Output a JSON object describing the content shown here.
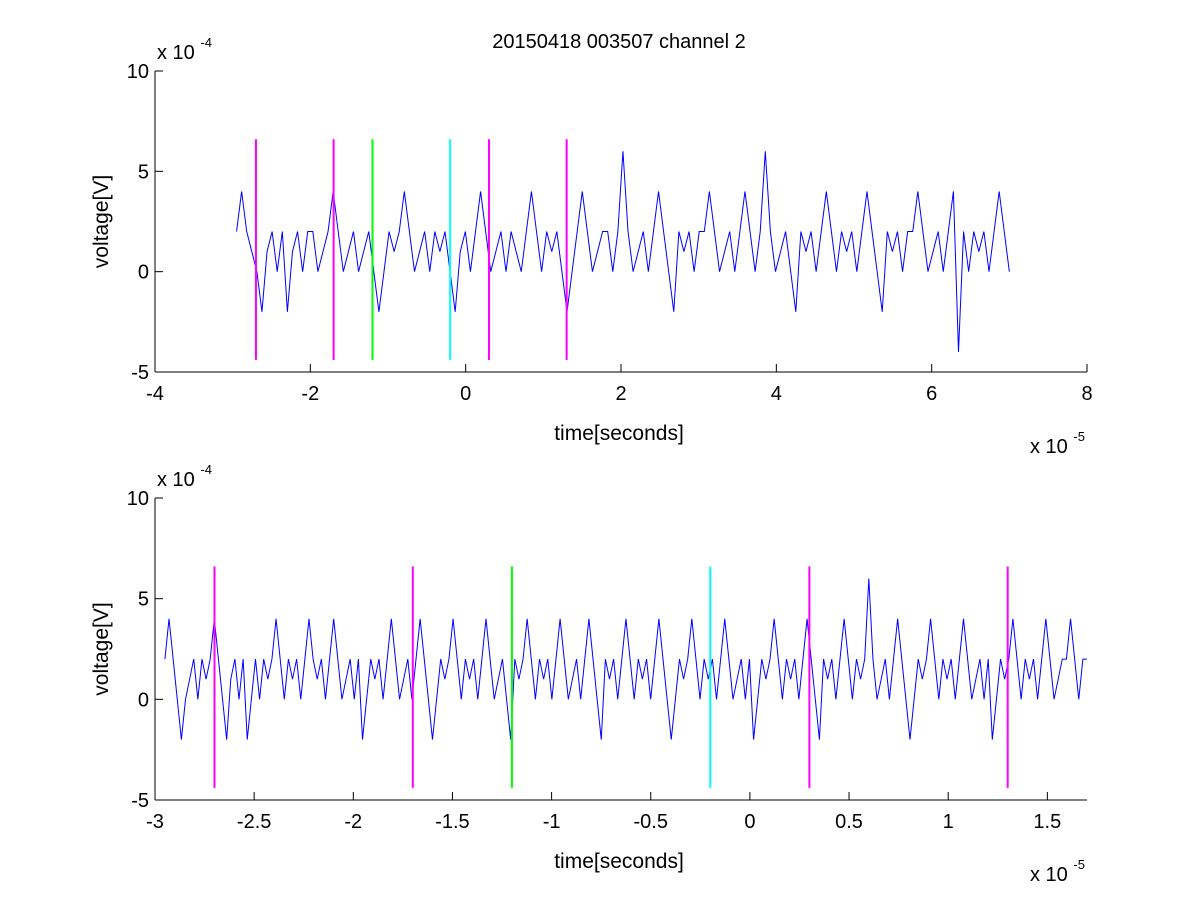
{
  "figure_title": "20150418 003507 channel 2",
  "chart_data": [
    {
      "type": "line",
      "title": "20150418 003507 channel 2",
      "xlabel": "time[seconds]",
      "ylabel": "voltage[V]",
      "x_exponent_label": "x 10",
      "x_exponent": "-5",
      "y_exponent_label": "x 10",
      "y_exponent": "-4",
      "xlim": [
        -4,
        8
      ],
      "ylim": [
        -5,
        10
      ],
      "xticks": [
        -4,
        -2,
        0,
        2,
        4,
        6,
        8
      ],
      "xtick_labels": [
        "-4",
        "-2",
        "0",
        "2",
        "4",
        "6",
        "8"
      ],
      "yticks": [
        -5,
        0,
        5,
        10
      ],
      "ytick_labels": [
        "-5",
        "0",
        "5",
        "10"
      ],
      "grid": false,
      "series": [
        {
          "color": "#0000ff",
          "x_range": [
            -2.95,
            7.0
          ],
          "levels": [
            -4,
            -2,
            0,
            1,
            2,
            4,
            6
          ],
          "values": [
            2,
            4,
            2,
            1,
            0,
            -2,
            1,
            2,
            0,
            2,
            -2,
            1,
            2,
            0,
            2,
            2,
            0,
            1,
            2,
            4,
            2,
            0,
            1,
            2,
            0,
            1,
            2,
            0,
            -2,
            0,
            2,
            1,
            2,
            4,
            2,
            0,
            1,
            2,
            0,
            2,
            1,
            2,
            0,
            -2,
            1,
            2,
            0,
            2,
            4,
            2,
            0,
            1,
            2,
            0,
            2,
            1,
            0,
            2,
            4,
            2,
            0,
            2,
            1,
            2,
            0,
            -2,
            0,
            2,
            4,
            2,
            0,
            1,
            2,
            2,
            0,
            2,
            6,
            2,
            0,
            1,
            2,
            0,
            2,
            4,
            2,
            0,
            -2,
            2,
            1,
            2,
            0,
            2,
            2,
            4,
            2,
            0,
            1,
            2,
            0,
            2,
            4,
            2,
            0,
            2,
            6,
            2,
            0,
            1,
            2,
            0,
            -2,
            2,
            1,
            2,
            0,
            2,
            4,
            2,
            0,
            2,
            1,
            2,
            0,
            2,
            4,
            2,
            0,
            -2,
            2,
            1,
            2,
            0,
            2,
            2,
            4,
            2,
            0,
            1,
            2,
            0,
            2,
            4,
            -4,
            2,
            0,
            2,
            1,
            2,
            0,
            2,
            4,
            2,
            0
          ]
        }
      ],
      "markers": [
        {
          "x": -2.7,
          "color": "#ff00ff"
        },
        {
          "x": -1.7,
          "color": "#ff00ff"
        },
        {
          "x": -1.2,
          "color": "#00ff00"
        },
        {
          "x": -0.2,
          "color": "#00ffff"
        },
        {
          "x": 0.3,
          "color": "#ff00ff"
        },
        {
          "x": 1.3,
          "color": "#ff00ff"
        }
      ],
      "marker_range": [
        -4.4,
        6.6
      ]
    },
    {
      "type": "line",
      "title": "",
      "xlabel": "time[seconds]",
      "ylabel": "voltage[V]",
      "x_exponent_label": "x 10",
      "x_exponent": "-5",
      "y_exponent_label": "x 10",
      "y_exponent": "-4",
      "xlim": [
        -3,
        1.7
      ],
      "ylim": [
        -5,
        10
      ],
      "xticks": [
        -3,
        -2.5,
        -2,
        -1.5,
        -1,
        -0.5,
        0,
        0.5,
        1,
        1.5
      ],
      "xtick_labels": [
        "-3",
        "-2.5",
        "-2",
        "-1.5",
        "-1",
        "-0.5",
        "0",
        "0.5",
        "1",
        "1.5"
      ],
      "yticks": [
        -5,
        0,
        5,
        10
      ],
      "ytick_labels": [
        "-5",
        "0",
        "5",
        "10"
      ],
      "grid": false,
      "series": [
        {
          "color": "#0000ff",
          "x_range": [
            -2.95,
            1.7
          ],
          "levels": [
            -2,
            0,
            1,
            2,
            4,
            6
          ],
          "values": [
            2,
            4,
            2,
            0,
            -2,
            0,
            1,
            2,
            0,
            2,
            1,
            2,
            4,
            2,
            0,
            -2,
            1,
            2,
            0,
            2,
            -2,
            0,
            2,
            0,
            2,
            1,
            2,
            4,
            2,
            0,
            2,
            1,
            2,
            0,
            2,
            4,
            2,
            1,
            2,
            0,
            2,
            4,
            2,
            0,
            1,
            2,
            0,
            2,
            -2,
            0,
            2,
            1,
            2,
            0,
            2,
            4,
            2,
            0,
            1,
            2,
            0,
            2,
            4,
            2,
            0,
            -2,
            0,
            2,
            1,
            2,
            4,
            2,
            0,
            2,
            1,
            2,
            0,
            2,
            4,
            2,
            0,
            1,
            2,
            0,
            -2,
            2,
            1,
            2,
            4,
            2,
            0,
            2,
            1,
            2,
            0,
            2,
            4,
            2,
            0,
            1,
            2,
            0,
            2,
            4,
            2,
            0,
            -2,
            2,
            1,
            2,
            0,
            2,
            4,
            2,
            0,
            2,
            1,
            2,
            0,
            2,
            4,
            2,
            0,
            -2,
            0,
            2,
            1,
            2,
            4,
            2,
            0,
            2,
            1,
            2,
            0,
            2,
            4,
            2,
            0,
            1,
            2,
            0,
            2,
            -2,
            0,
            2,
            1,
            2,
            4,
            2,
            0,
            2,
            1,
            2,
            0,
            2,
            4,
            2,
            0,
            -2,
            2,
            1,
            2,
            0,
            2,
            4,
            2,
            0,
            2,
            1,
            2,
            6,
            2,
            0,
            1,
            2,
            0,
            2,
            4,
            2,
            0,
            -2,
            0,
            2,
            1,
            2,
            4,
            2,
            0,
            2,
            1,
            2,
            0,
            2,
            4,
            2,
            0,
            1,
            2,
            0,
            2,
            -2,
            0,
            2,
            1,
            2,
            4,
            2,
            0,
            2,
            1,
            2,
            0,
            2,
            4,
            2,
            0,
            1,
            2,
            2,
            4,
            2,
            0,
            2,
            2
          ]
        }
      ],
      "markers": [
        {
          "x": -2.7,
          "color": "#ff00ff"
        },
        {
          "x": -1.7,
          "color": "#ff00ff"
        },
        {
          "x": -1.2,
          "color": "#00ff00"
        },
        {
          "x": -0.2,
          "color": "#00ffff"
        },
        {
          "x": 0.3,
          "color": "#ff00ff"
        },
        {
          "x": 1.3,
          "color": "#ff00ff"
        }
      ],
      "marker_range": [
        -4.4,
        6.6
      ]
    }
  ]
}
